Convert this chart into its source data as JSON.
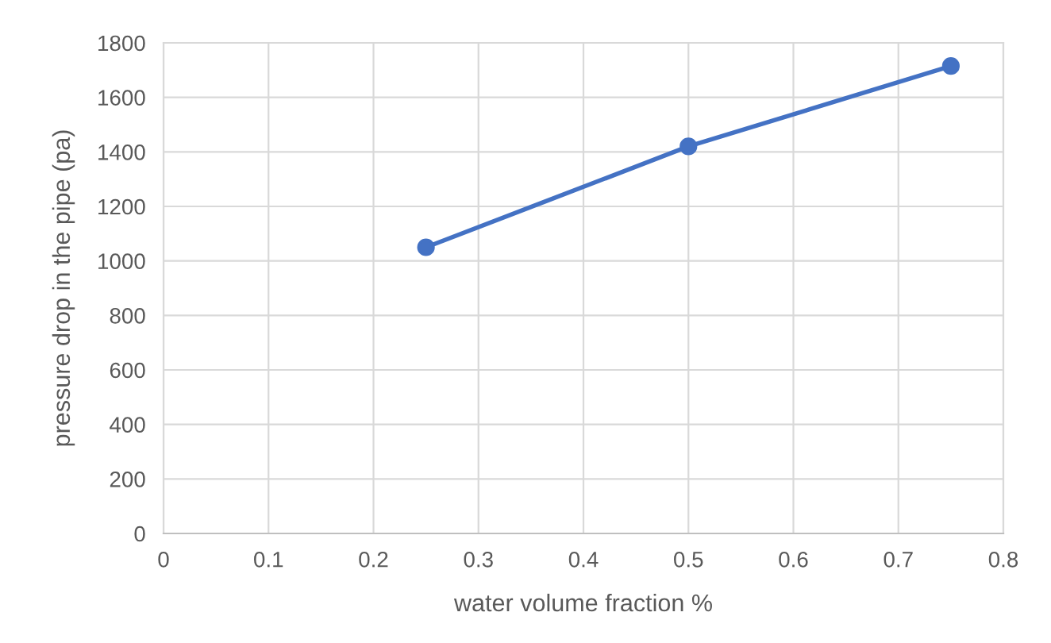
{
  "chart_data": {
    "type": "line",
    "xlabel": "water volume fraction %",
    "ylabel": "pressure drop in the pipe (pa)",
    "x": [
      0.25,
      0.5,
      0.75
    ],
    "series": [
      {
        "color": "#4472c4",
        "values": [
          1050,
          1420,
          1715
        ]
      }
    ],
    "xlim": [
      0,
      0.8
    ],
    "xticks": [
      0,
      0.1,
      0.2,
      0.3,
      0.4,
      0.5,
      0.6,
      0.7,
      0.8
    ],
    "ylim": [
      0,
      1800
    ],
    "yticks": [
      0,
      200,
      400,
      600,
      800,
      1000,
      1200,
      1400,
      1600,
      1800
    ],
    "grid": true,
    "marker": "circle",
    "line_style": "solid"
  }
}
